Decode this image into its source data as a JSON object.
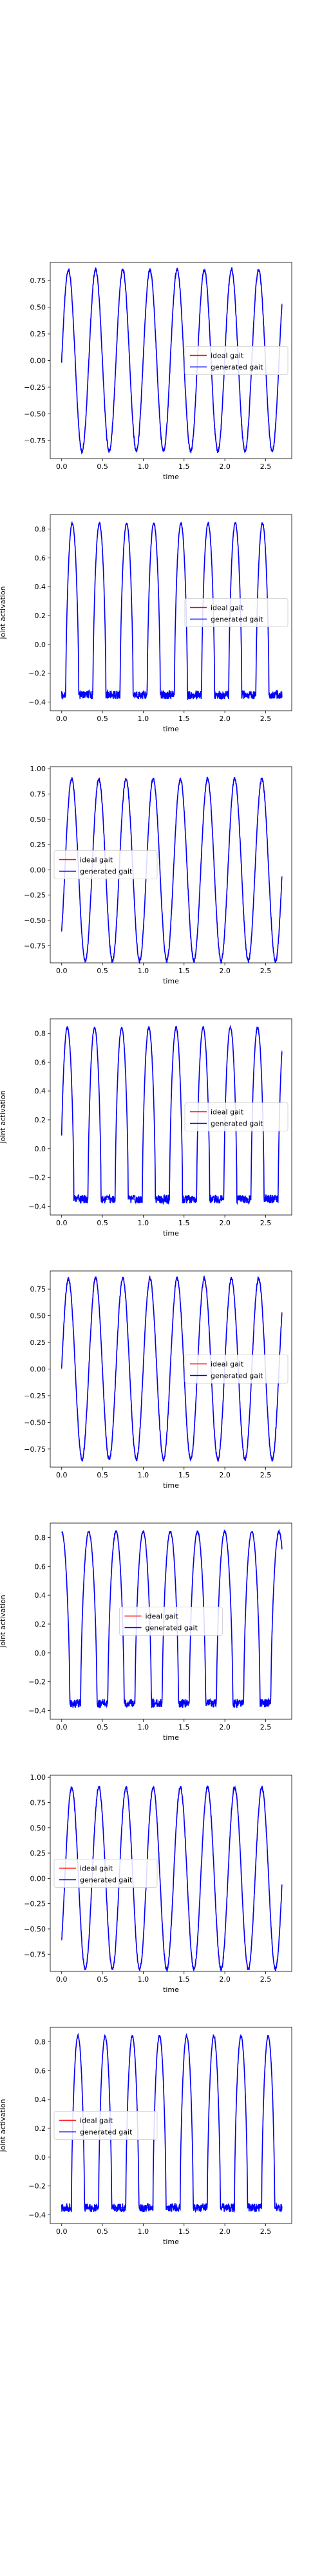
{
  "figure": {
    "legend_labels": [
      "ideal gait",
      "generated gait"
    ],
    "colors": {
      "ideal": "#ff0000",
      "generated": "#0000ff",
      "axes": "#000000",
      "background": "#ffffff"
    }
  },
  "chart_data": [
    {
      "type": "line",
      "xlabel": "time",
      "ylabel": "",
      "xlim": [
        -0.14,
        2.82
      ],
      "ylim": [
        -0.92,
        0.92
      ],
      "xticks": [
        0.0,
        0.5,
        1.0,
        1.5,
        2.0,
        2.5
      ],
      "xtick_labels": [
        "0.0",
        "0.5",
        "1.0",
        "1.5",
        "2.0",
        "2.5"
      ],
      "yticks": [
        -0.75,
        -0.5,
        -0.25,
        0.0,
        0.25,
        0.5,
        0.75
      ],
      "ytick_labels": [
        "−0.75",
        "−0.50",
        "−0.25",
        "0.00",
        "0.25",
        "0.50",
        "0.75"
      ],
      "legend_position": "center-right",
      "waveform": "sine",
      "period": 0.333,
      "phase": 0.0,
      "amplitude": 0.85,
      "x_end": 2.7,
      "series": [
        {
          "name": "ideal gait",
          "color": "#ff0000"
        },
        {
          "name": "generated gait",
          "color": "#0000ff"
        }
      ]
    },
    {
      "type": "line",
      "xlabel": "time",
      "ylabel": "joint activation",
      "xlim": [
        -0.14,
        2.82
      ],
      "ylim": [
        -0.46,
        0.9
      ],
      "xticks": [
        0.0,
        0.5,
        1.0,
        1.5,
        2.0,
        2.5
      ],
      "xtick_labels": [
        "0.0",
        "0.5",
        "1.0",
        "1.5",
        "2.0",
        "2.5"
      ],
      "yticks": [
        -0.4,
        -0.2,
        0.0,
        0.2,
        0.4,
        0.6,
        0.8
      ],
      "ytick_labels": [
        "−0.4",
        "−0.2",
        "0.0",
        "0.2",
        "0.4",
        "0.6",
        "0.8"
      ],
      "legend_position": "center-right",
      "waveform": "pulse",
      "period": 0.333,
      "pulse_center": 0.13,
      "pulse_width": 0.16,
      "baseline": -0.35,
      "peak": 0.84,
      "x_end": 2.7,
      "series": [
        {
          "name": "ideal gait",
          "color": "#ff0000"
        },
        {
          "name": "generated gait",
          "color": "#0000ff"
        }
      ]
    },
    {
      "type": "line",
      "xlabel": "time",
      "ylabel": "",
      "xlim": [
        -0.14,
        2.82
      ],
      "ylim": [
        -0.92,
        1.02
      ],
      "xticks": [
        0.0,
        0.5,
        1.0,
        1.5,
        2.0,
        2.5
      ],
      "xtick_labels": [
        "0.0",
        "0.5",
        "1.0",
        "1.5",
        "2.0",
        "2.5"
      ],
      "yticks": [
        -0.75,
        -0.5,
        -0.25,
        0.0,
        0.25,
        0.5,
        0.75,
        1.0
      ],
      "ytick_labels": [
        "−0.75",
        "−0.50",
        "−0.25",
        "0.00",
        "0.25",
        "0.50",
        "0.75",
        "1.00"
      ],
      "legend_position": "center-left",
      "waveform": "sine",
      "period": 0.333,
      "phase": -0.75,
      "amplitude": 0.9,
      "x_end": 2.7,
      "series": [
        {
          "name": "ideal gait",
          "color": "#ff0000"
        },
        {
          "name": "generated gait",
          "color": "#0000ff"
        }
      ]
    },
    {
      "type": "line",
      "xlabel": "time",
      "ylabel": "joint activation",
      "xlim": [
        -0.14,
        2.82
      ],
      "ylim": [
        -0.46,
        0.9
      ],
      "xticks": [
        0.0,
        0.5,
        1.0,
        1.5,
        2.0,
        2.5
      ],
      "xtick_labels": [
        "0.0",
        "0.5",
        "1.0",
        "1.5",
        "2.0",
        "2.5"
      ],
      "yticks": [
        -0.4,
        -0.2,
        0.0,
        0.2,
        0.4,
        0.6,
        0.8
      ],
      "ytick_labels": [
        "−0.4",
        "−0.2",
        "0.0",
        "0.2",
        "0.4",
        "0.6",
        "0.8"
      ],
      "legend_position": "center-right",
      "waveform": "pulse",
      "period": 0.333,
      "pulse_center": 0.07,
      "pulse_width": 0.16,
      "baseline": -0.35,
      "peak": 0.84,
      "x_end": 2.7,
      "series": [
        {
          "name": "ideal gait",
          "color": "#ff0000"
        },
        {
          "name": "generated gait",
          "color": "#0000ff"
        }
      ]
    },
    {
      "type": "line",
      "xlabel": "time",
      "ylabel": "",
      "xlim": [
        -0.14,
        2.82
      ],
      "ylim": [
        -0.92,
        0.92
      ],
      "xticks": [
        0.0,
        0.5,
        1.0,
        1.5,
        2.0,
        2.5
      ],
      "xtick_labels": [
        "0.0",
        "0.5",
        "1.0",
        "1.5",
        "2.0",
        "2.5"
      ],
      "yticks": [
        -0.75,
        -0.5,
        -0.25,
        0.0,
        0.25,
        0.5,
        0.75
      ],
      "ytick_labels": [
        "−0.75",
        "−0.50",
        "−0.25",
        "0.00",
        "0.25",
        "0.50",
        "0.75"
      ],
      "legend_position": "center-right",
      "waveform": "sine",
      "period": 0.333,
      "phase": 0.0,
      "amplitude": 0.85,
      "x_end": 2.7,
      "series": [
        {
          "name": "ideal gait",
          "color": "#ff0000"
        },
        {
          "name": "generated gait",
          "color": "#0000ff"
        }
      ]
    },
    {
      "type": "line",
      "xlabel": "time",
      "ylabel": "joint activation",
      "xlim": [
        -0.14,
        2.82
      ],
      "ylim": [
        -0.46,
        0.9
      ],
      "xticks": [
        0.0,
        0.5,
        1.0,
        1.5,
        2.0,
        2.5
      ],
      "xtick_labels": [
        "0.0",
        "0.5",
        "1.0",
        "1.5",
        "2.0",
        "2.5"
      ],
      "yticks": [
        -0.4,
        -0.2,
        0.0,
        0.2,
        0.4,
        0.6,
        0.8
      ],
      "ytick_labels": [
        "−0.4",
        "−0.2",
        "0.0",
        "0.2",
        "0.4",
        "0.6",
        "0.8"
      ],
      "legend_position": "center",
      "waveform": "pulse",
      "period": 0.333,
      "pulse_center": 0.0,
      "pulse_width": 0.2,
      "baseline": -0.35,
      "peak": 0.84,
      "x_end": 2.7,
      "series": [
        {
          "name": "ideal gait",
          "color": "#ff0000"
        },
        {
          "name": "generated gait",
          "color": "#0000ff"
        }
      ]
    },
    {
      "type": "line",
      "xlabel": "time",
      "ylabel": "",
      "xlim": [
        -0.14,
        2.82
      ],
      "ylim": [
        -0.92,
        1.02
      ],
      "xticks": [
        0.0,
        0.5,
        1.0,
        1.5,
        2.0,
        2.5
      ],
      "xtick_labels": [
        "0.0",
        "0.5",
        "1.0",
        "1.5",
        "2.0",
        "2.5"
      ],
      "yticks": [
        -0.75,
        -0.5,
        -0.25,
        0.0,
        0.25,
        0.5,
        0.75,
        1.0
      ],
      "ytick_labels": [
        "−0.75",
        "−0.50",
        "−0.25",
        "0.00",
        "0.25",
        "0.50",
        "0.75",
        "1.00"
      ],
      "legend_position": "center-left",
      "waveform": "sine",
      "period": 0.333,
      "phase": -0.75,
      "amplitude": 0.9,
      "x_end": 2.7,
      "series": [
        {
          "name": "ideal gait",
          "color": "#ff0000"
        },
        {
          "name": "generated gait",
          "color": "#0000ff"
        }
      ]
    },
    {
      "type": "line",
      "xlabel": "time",
      "ylabel": "joint activation",
      "xlim": [
        -0.14,
        2.82
      ],
      "ylim": [
        -0.46,
        0.9
      ],
      "xticks": [
        0.0,
        0.5,
        1.0,
        1.5,
        2.0,
        2.5
      ],
      "xtick_labels": [
        "0.0",
        "0.5",
        "1.0",
        "1.5",
        "2.0",
        "2.5"
      ],
      "yticks": [
        -0.4,
        -0.2,
        0.0,
        0.2,
        0.4,
        0.6,
        0.8
      ],
      "ytick_labels": [
        "−0.4",
        "−0.2",
        "0.0",
        "0.2",
        "0.4",
        "0.6",
        "0.8"
      ],
      "legend_position": "center-left",
      "waveform": "pulse",
      "period": 0.333,
      "pulse_center": 0.2,
      "pulse_width": 0.16,
      "baseline": -0.35,
      "peak": 0.84,
      "x_end": 2.7,
      "series": [
        {
          "name": "ideal gait",
          "color": "#ff0000"
        },
        {
          "name": "generated gait",
          "color": "#0000ff"
        }
      ]
    }
  ]
}
